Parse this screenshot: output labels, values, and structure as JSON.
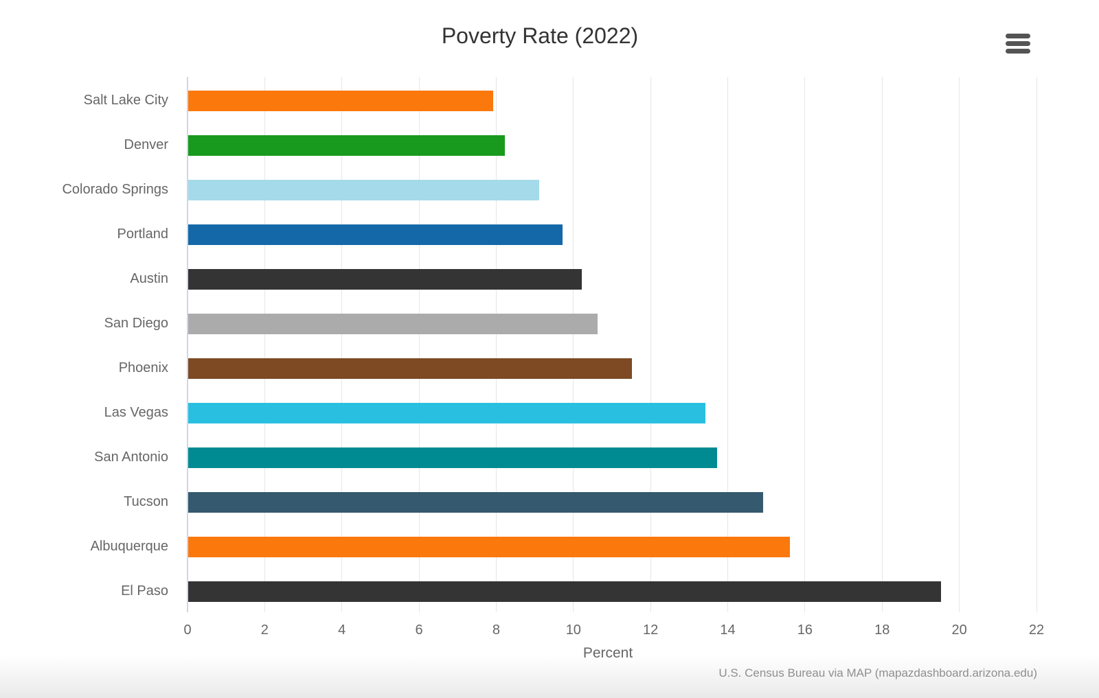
{
  "header": {
    "title": "Poverty Rate (2022)"
  },
  "chart_data": {
    "type": "bar",
    "orientation": "horizontal",
    "title": "Poverty Rate (2022)",
    "xlabel": "Percent",
    "ylabel": "",
    "caption": "U.S. Census Bureau via MAP (mapazdashboard.arizona.edu)",
    "categories": [
      "Salt Lake City",
      "Denver",
      "Colorado Springs",
      "Portland",
      "Austin",
      "San Diego",
      "Phoenix",
      "Las Vegas",
      "San Antonio",
      "Tucson",
      "Albuquerque",
      "El Paso"
    ],
    "values": [
      7.9,
      8.2,
      9.1,
      9.7,
      10.2,
      10.6,
      11.5,
      13.4,
      13.7,
      14.9,
      15.6,
      19.5
    ],
    "bar_colors": [
      "#FB780D",
      "#189A1E",
      "#A5DAEA",
      "#1568A8",
      "#343434",
      "#ABABAB",
      "#7D4A24",
      "#29BFE0",
      "#008B92",
      "#35596E",
      "#FB780D",
      "#343434"
    ],
    "xlim": [
      0,
      22
    ],
    "x_ticks": [
      0,
      2,
      4,
      6,
      8,
      10,
      12,
      14,
      16,
      18,
      20,
      22
    ],
    "grid": true,
    "legend": false
  },
  "icons": {
    "menu": "hamburger-menu-icon"
  },
  "colors": {
    "axis_line": "#CCD6EB",
    "grid_line": "#E6E6E6",
    "title_text": "#333333",
    "axis_text": "#666666",
    "caption_text": "#949494",
    "menu_icon": "#545454",
    "background": "#FFFFFF"
  }
}
